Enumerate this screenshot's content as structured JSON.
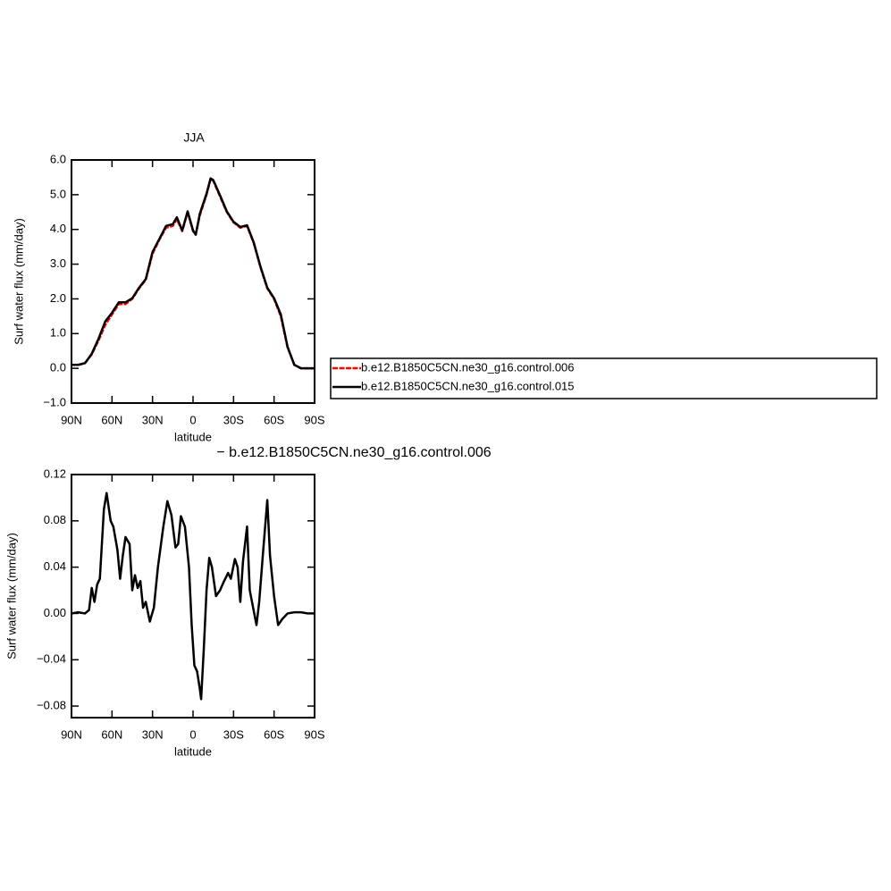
{
  "chart_data": [
    {
      "type": "line",
      "title": "JJA",
      "xlabel": "latitude",
      "ylabel": "Surf water flux (mm/day)",
      "x": [
        90,
        85,
        80,
        75,
        70,
        65,
        60,
        55,
        50,
        45,
        40,
        35,
        30,
        25,
        20,
        15,
        12,
        8,
        4,
        0,
        -2,
        -5,
        -10,
        -13,
        -15,
        -20,
        -25,
        -30,
        -35,
        -40,
        -45,
        -50,
        -55,
        -60,
        -65,
        -70,
        -75,
        -80,
        -85,
        -90
      ],
      "series": [
        {
          "name": "b.e12.B1850C5CN.ne30_g16.control.006",
          "color": "#ff0000",
          "dash": "dashed",
          "values": [
            0.1,
            0.1,
            0.15,
            0.4,
            0.8,
            1.25,
            1.55,
            1.85,
            1.85,
            2.0,
            2.3,
            2.55,
            3.3,
            3.7,
            4.05,
            4.1,
            4.3,
            3.95,
            4.5,
            3.95,
            3.85,
            4.4,
            5.0,
            5.45,
            5.4,
            4.95,
            4.5,
            4.2,
            4.05,
            4.1,
            3.6,
            2.9,
            2.3,
            2.0,
            1.5,
            0.6,
            0.1,
            0.0,
            0.0,
            0.0
          ]
        },
        {
          "name": "b.e12.B1850C5CN.ne30_g16.control.015",
          "color": "#000000",
          "dash": "solid",
          "values": [
            0.1,
            0.1,
            0.15,
            0.42,
            0.85,
            1.35,
            1.6,
            1.9,
            1.9,
            2.02,
            2.32,
            2.57,
            3.35,
            3.72,
            4.1,
            4.15,
            4.35,
            3.97,
            4.52,
            3.97,
            3.85,
            4.45,
            5.03,
            5.47,
            5.42,
            4.98,
            4.52,
            4.22,
            4.07,
            4.12,
            3.62,
            2.92,
            2.32,
            2.02,
            1.55,
            0.62,
            0.1,
            0.0,
            0.0,
            0.0
          ]
        }
      ],
      "xlim": [
        90,
        -90
      ],
      "xticks": [
        {
          "value": 90,
          "label": "90N"
        },
        {
          "value": 60,
          "label": "60N"
        },
        {
          "value": 30,
          "label": "30N"
        },
        0,
        {
          "value": -30,
          "label": "30S"
        },
        {
          "value": -60,
          "label": "60S"
        },
        {
          "value": -90,
          "label": "90S"
        }
      ],
      "ylim": [
        -1,
        6
      ],
      "yticks": [
        {
          "value": -1,
          "label": "−1.0"
        },
        {
          "value": 0,
          "label": "0.0"
        },
        {
          "value": 1,
          "label": "1.0"
        },
        {
          "value": 2,
          "label": "2.0"
        },
        {
          "value": 3,
          "label": "3.0"
        },
        {
          "value": 4,
          "label": "4.0"
        },
        {
          "value": 5,
          "label": "5.0"
        },
        {
          "value": 6,
          "label": "6.0"
        }
      ],
      "legend": "right"
    },
    {
      "type": "line",
      "title": "− b.e12.B1850C5CN.ne30_g16.control.006",
      "xlabel": "latitude",
      "ylabel": "Surf water flux (mm/day)",
      "x": [
        90,
        85,
        80,
        77,
        75,
        73,
        71,
        69,
        66,
        64,
        61,
        59,
        56,
        54,
        52,
        50,
        47,
        45,
        43,
        41,
        39,
        37,
        35,
        32,
        29,
        26,
        22,
        19,
        16,
        13,
        11,
        9,
        6,
        3,
        1,
        -1,
        -3,
        -5,
        -6,
        -8,
        -10,
        -12,
        -14,
        -17,
        -20,
        -23,
        -26,
        -28,
        -31,
        -33,
        -35,
        -37,
        -40,
        -42,
        -45,
        -47,
        -49,
        -52,
        -55,
        -57,
        -60,
        -63,
        -66,
        -70,
        -75,
        -80,
        -85,
        -90
      ],
      "series": [
        {
          "color": "#000000",
          "dash": "solid",
          "values": [
            0,
            0.001,
            0,
            0.003,
            0.022,
            0.01,
            0.025,
            0.03,
            0.09,
            0.104,
            0.08,
            0.075,
            0.055,
            0.03,
            0.05,
            0.066,
            0.06,
            0.02,
            0.033,
            0.022,
            0.028,
            0.005,
            0.01,
            -0.007,
            0.005,
            0.04,
            0.075,
            0.097,
            0.085,
            0.057,
            0.06,
            0.084,
            0.075,
            0.04,
            -0.01,
            -0.045,
            -0.05,
            -0.065,
            -0.074,
            -0.03,
            0.02,
            0.048,
            0.04,
            0.015,
            0.02,
            0.028,
            0.035,
            0.03,
            0.047,
            0.04,
            0.01,
            0.045,
            0.075,
            0.02,
            0.002,
            -0.01,
            0.01,
            0.055,
            0.098,
            0.05,
            0.015,
            -0.01,
            -0.005,
            0,
            0.001,
            0.001,
            0,
            0
          ]
        }
      ],
      "xlim": [
        90,
        -90
      ],
      "xticks": [
        {
          "value": 90,
          "label": "90N"
        },
        {
          "value": 60,
          "label": "60N"
        },
        {
          "value": 30,
          "label": "30N"
        },
        0,
        {
          "value": -30,
          "label": "30S"
        },
        {
          "value": -60,
          "label": "60S"
        },
        {
          "value": -90,
          "label": "90S"
        }
      ],
      "ylim": [
        -0.09,
        0.12
      ],
      "yticks": [
        {
          "value": -0.08,
          "label": "−0.08"
        },
        {
          "value": -0.04,
          "label": "−0.04"
        },
        {
          "value": 0,
          "label": "0.00"
        },
        0.04,
        0.08,
        0.12
      ]
    }
  ]
}
